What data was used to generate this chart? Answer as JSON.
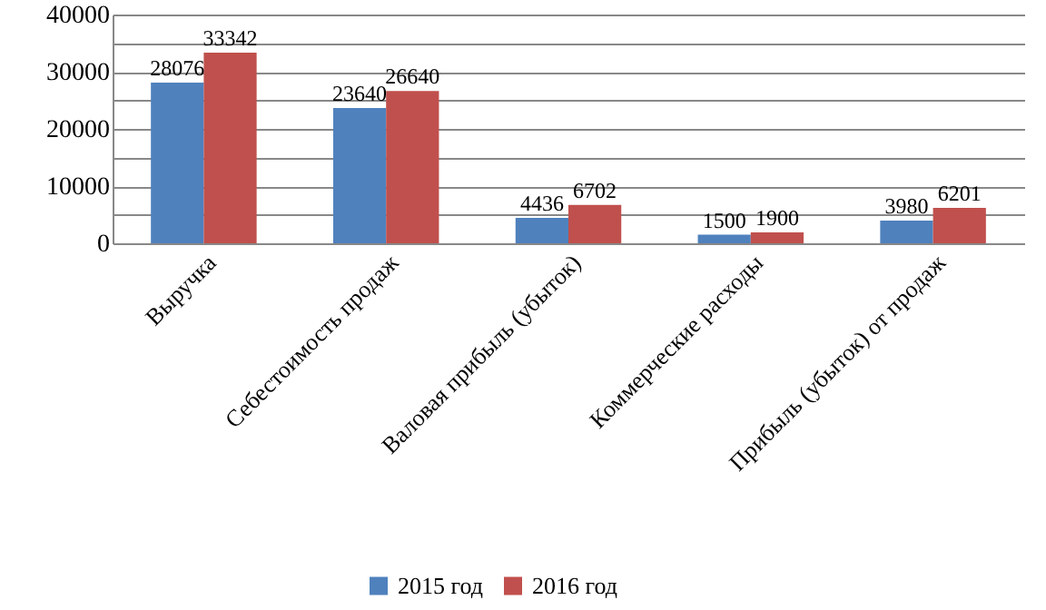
{
  "chart_data": {
    "type": "bar",
    "categories": [
      "Выручка",
      "Себестоимость продаж",
      "Валовая прибыль (убыток)",
      "Коммерческие расходы",
      "Прибыль (убыток) от продаж"
    ],
    "series": [
      {
        "name": "2015 год",
        "color": "#4f81bd",
        "values": [
          28076,
          23640,
          4436,
          1500,
          3980
        ]
      },
      {
        "name": "2016 год",
        "color": "#c0504d",
        "values": [
          33342,
          26640,
          6702,
          1900,
          6201
        ]
      }
    ],
    "ylim": [
      0,
      40000
    ],
    "yticks": [
      0,
      {
        "value": 5000,
        "label": null
      },
      10000,
      {
        "value": 15000,
        "label": null
      },
      20000,
      {
        "value": 25000,
        "label": null
      },
      30000,
      {
        "value": 35000,
        "label": null
      },
      40000
    ],
    "grid": "y",
    "legend": "bottom",
    "data_labels": true
  }
}
